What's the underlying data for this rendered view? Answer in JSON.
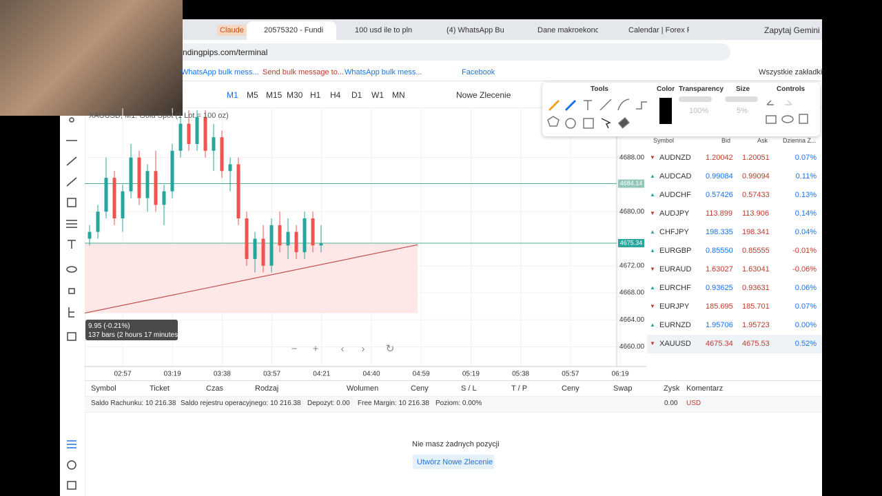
{
  "tabs": [
    "Claude",
    "20575320 - Fundi",
    "100 usd ile to pln",
    "(4) WhatsApp Bu",
    "Dane makroekono",
    "Calendar | Forex F"
  ],
  "gemini": "Zapytaj Gemini",
  "url": "ndingpips.com/terminal",
  "bookmarks": [
    "WhatsApp bulk mess...",
    "Send bulk message to...",
    "WhatsApp bulk mess...",
    "Facebook"
  ],
  "all_bookmarks": "Wszystkie zakładki",
  "timeframes": [
    "M1",
    "M5",
    "M15",
    "M30",
    "H1",
    "H4",
    "D1",
    "W1",
    "MN"
  ],
  "new_order": "Nowe Zlecenie",
  "tools_panel": {
    "tools": "Tools",
    "color": "Color",
    "transparency": "Transparency",
    "transparency_value": "100%",
    "size": "Size",
    "size_value": "5%",
    "controls": "Controls"
  },
  "chart": {
    "title": "XAUUSD, M1: Gold Spot (1 Lot = 100 oz)",
    "ylim": [
      4657.1,
      4695.3
    ],
    "yticks": [
      {
        "value": 4688,
        "label": "4688.00"
      },
      {
        "value": 4680,
        "label": "4680.00"
      },
      {
        "value": 4672,
        "label": "4672.00"
      },
      {
        "value": 4668,
        "label": "4668.00"
      },
      {
        "value": 4664,
        "label": "4664.00"
      },
      {
        "value": 4660,
        "label": "4660.00"
      }
    ],
    "xlabels": [
      "02:57",
      "03:19",
      "03:38",
      "03:57",
      "04:21",
      "04:40",
      "04:59",
      "05:19",
      "05:38",
      "05:57",
      "06:19"
    ],
    "levels": [
      4684.14,
      4675.34
    ],
    "zone": [
      4665,
      4675.34
    ],
    "trendline": [
      4665,
      4675.1
    ],
    "candles": [
      [
        4676,
        4678,
        4675,
        4677
      ],
      [
        4677,
        4681,
        4676,
        4680
      ],
      [
        4680,
        4688,
        4679,
        4685
      ],
      [
        4685,
        4686,
        4678,
        4679
      ],
      [
        4679,
        4684,
        4677,
        4683
      ],
      [
        4683,
        4690,
        4682,
        4688
      ],
      [
        4688,
        4689,
        4681,
        4682
      ],
      [
        4682,
        4687,
        4680,
        4686
      ],
      [
        4686,
        4689,
        4680,
        4681
      ],
      [
        4681,
        4684,
        4678,
        4683
      ],
      [
        4683,
        4690,
        4682,
        4689
      ],
      [
        4689,
        4694,
        4688,
        4693
      ],
      [
        4693,
        4695,
        4689,
        4690
      ],
      [
        4690,
        4695,
        4689,
        4694
      ],
      [
        4694,
        4695,
        4688,
        4689
      ],
      [
        4689,
        4693,
        4686,
        4691
      ],
      [
        4691,
        4692,
        4685,
        4686
      ],
      [
        4686,
        4688,
        4683,
        4687
      ],
      [
        4687,
        4688,
        4678,
        4679
      ],
      [
        4679,
        4680,
        4672,
        4673
      ],
      [
        4673,
        4677,
        4671,
        4676
      ],
      [
        4676,
        4678,
        4671,
        4672
      ],
      [
        4672,
        4679,
        4671,
        4678
      ],
      [
        4678,
        4680,
        4674,
        4675
      ],
      [
        4675,
        4679,
        4673,
        4677
      ],
      [
        4677,
        4678,
        4673,
        4674
      ],
      [
        4674,
        4680,
        4673,
        4679
      ],
      [
        4679,
        4680,
        4674,
        4675
      ],
      [
        4675,
        4678,
        4674,
        4675.3
      ]
    ],
    "tooltip": [
      "9.95 (-0.21%)",
      "137 bars (2 hours 17 minutes)"
    ]
  },
  "watchlist": {
    "headers": [
      "Symbol",
      "Bid",
      "Ask",
      "Dzienna Z..."
    ],
    "rows": [
      {
        "symbol": "AUDNZD",
        "dir": "down",
        "bid": "1.20042",
        "ask": "1.20051",
        "change": "0.07%"
      },
      {
        "symbol": "AUDCAD",
        "dir": "up",
        "bid": "0.99084",
        "ask": "0.99094",
        "change": "0.11%"
      },
      {
        "symbol": "AUDCHF",
        "dir": "up",
        "bid": "0.57426",
        "ask": "0.57433",
        "change": "0.13%"
      },
      {
        "symbol": "AUDJPY",
        "dir": "down",
        "bid": "113.899",
        "ask": "113.906",
        "change": "0.14%"
      },
      {
        "symbol": "CHFJPY",
        "dir": "up",
        "bid": "198.335",
        "ask": "198.341",
        "change": "0.04%"
      },
      {
        "symbol": "EURGBP",
        "dir": "up",
        "bid": "0.85550",
        "ask": "0.85555",
        "change": "-0.01%"
      },
      {
        "symbol": "EURAUD",
        "dir": "down",
        "bid": "1.63027",
        "ask": "1.63041",
        "change": "-0.06%"
      },
      {
        "symbol": "EURCHF",
        "dir": "up",
        "bid": "0.93625",
        "ask": "0.93631",
        "change": "0.06%"
      },
      {
        "symbol": "EURJPY",
        "dir": "down",
        "bid": "185.695",
        "ask": "185.701",
        "change": "0.07%"
      },
      {
        "symbol": "EURNZD",
        "dir": "up",
        "bid": "1.95706",
        "ask": "1.95723",
        "change": "0.00%"
      },
      {
        "symbol": "XAUUSD",
        "dir": "down",
        "bid": "4675.34",
        "ask": "4675.53",
        "change": "0.52%"
      }
    ]
  },
  "positions": {
    "headers": [
      "Symbol",
      "Ticket",
      "Czas",
      "Rodzaj",
      "Wolumen",
      "Ceny",
      "S / L",
      "T / P",
      "Ceny",
      "Swap",
      "Zysk",
      "Komentarz"
    ],
    "account": [
      "Saldo Rachunku: 10 216.38",
      "Saldo rejestru operacyjnego: 10 216.38",
      "Depozyt: 0.00",
      "Free Margin: 10 216.38",
      "Poziom: 0.00%"
    ],
    "profit": "0.00",
    "currency": "USD",
    "empty": "Nie masz żadnych pozycji",
    "create_button": "Utwórz Nowe Zlecenie"
  }
}
